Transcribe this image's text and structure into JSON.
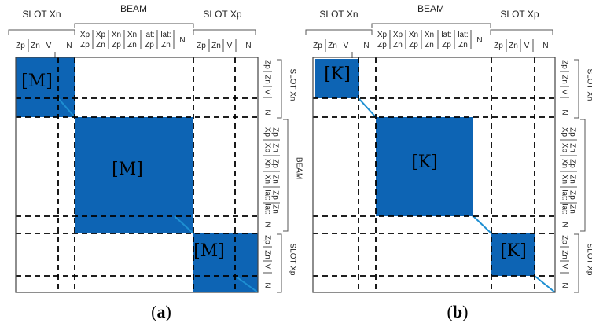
{
  "panels": [
    {
      "id": "a",
      "caption_open": "(",
      "caption_letter": "a",
      "caption_close": ")",
      "block_label": "[M]",
      "blocks": [
        {
          "label": "[M]",
          "symbol": "M"
        },
        {
          "label": "[M]",
          "symbol": "M"
        },
        {
          "label": "[M]",
          "symbol": "M"
        }
      ]
    },
    {
      "id": "b",
      "caption_open": "(",
      "caption_letter": "b",
      "caption_close": ")",
      "block_label": "[K]",
      "blocks": [
        {
          "label": "[K]",
          "symbol": "K"
        },
        {
          "label": "[K]",
          "symbol": "K"
        },
        {
          "label": "[K]",
          "symbol": "K"
        }
      ]
    }
  ],
  "groups": [
    {
      "name": "SLOT Xn",
      "top_labels": [
        "Zp",
        "Zn",
        "V",
        "N"
      ],
      "side_labels": [
        "Zp",
        "Zn",
        "V",
        "N"
      ]
    },
    {
      "name": "BEAM",
      "top_labels_row1": [
        "Xp",
        "Xp",
        "Xn",
        "Xn",
        "lat:",
        "lat:",
        "N"
      ],
      "top_labels_row2": [
        "Zp",
        "Zn",
        "Zp",
        "Zn",
        "Zp",
        "Zn",
        ""
      ],
      "side_labels": [
        "Xp Zp",
        "Xp Zn",
        "Xn Zp",
        "Xn Zn",
        "lat: Zp",
        "lat: Zn",
        "N"
      ]
    },
    {
      "name": "SLOT Xp",
      "top_labels": [
        "Zp",
        "Zn",
        "V",
        "N"
      ],
      "side_labels": [
        "Zp",
        "Zn",
        "V",
        "N"
      ]
    }
  ],
  "colors": {
    "block_fill": "#0d64b4",
    "diagonal": "#1e8fd2",
    "grid": "#000000",
    "frame": "#444444"
  }
}
